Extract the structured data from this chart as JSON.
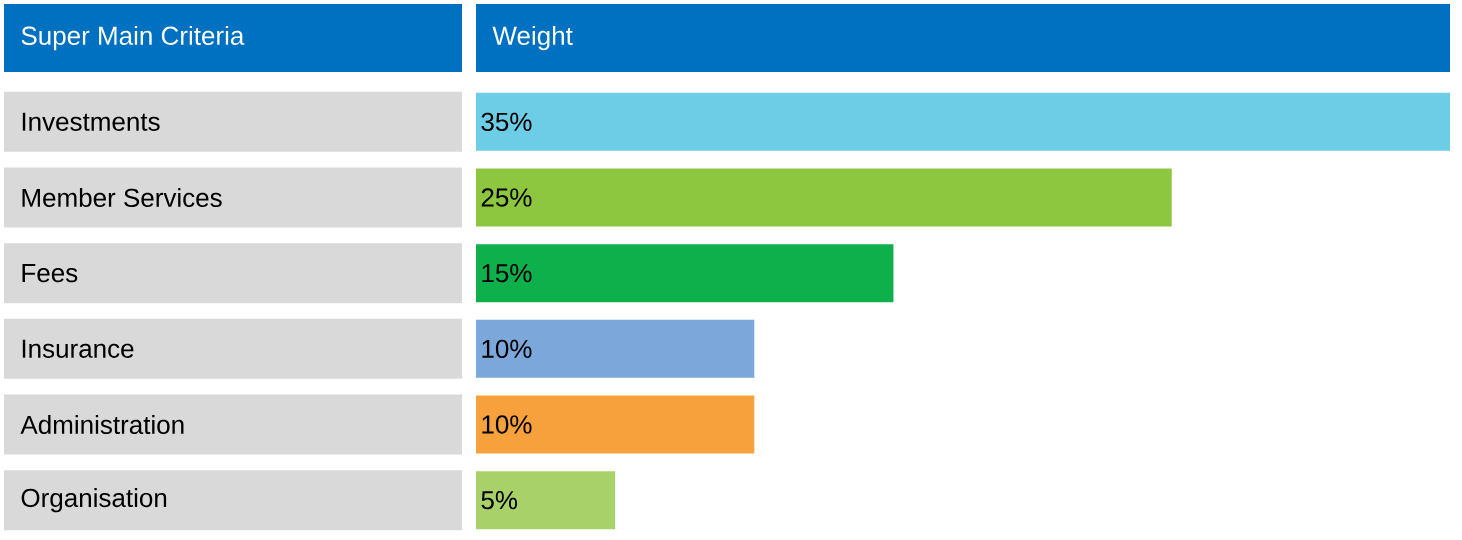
{
  "chart_data": {
    "type": "bar",
    "orientation": "horizontal",
    "ylabel": "Super Main Criteria",
    "xlabel": "Weight",
    "categories": [
      "Investments",
      "Member Services",
      "Fees",
      "Insurance",
      "Administration",
      "Organisation"
    ],
    "values": [
      35,
      25,
      15,
      10,
      10,
      5
    ],
    "value_labels": [
      "35%",
      "25%",
      "15%",
      "10%",
      "10%",
      "5%"
    ],
    "colors": [
      "#6ecde6",
      "#8dc63f",
      "#0db04b",
      "#7ba7db",
      "#f7a13d",
      "#a8d16a"
    ]
  }
}
